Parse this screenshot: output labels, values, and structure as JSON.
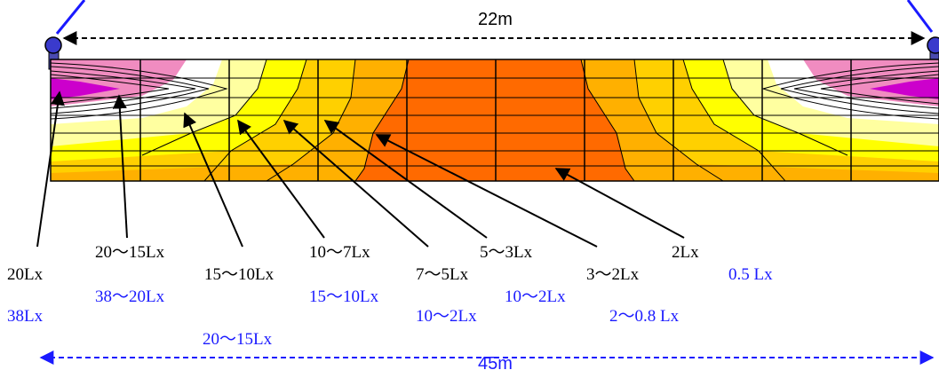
{
  "dimensions": {
    "top": "22m",
    "bottom": "45m"
  },
  "colors": {
    "zone_20": "#cc00cc",
    "zone_15": "#f08cc0",
    "zone_10": "#ffffff",
    "zone_7": "#ffffa0",
    "zone_5": "#ffff00",
    "zone_3": "#ffd000",
    "zone_2": "#ffb000",
    "zone_core": "#ff6a00",
    "blue": "#1a1aff"
  },
  "labels": {
    "black": [
      "20Lx",
      "20〜15Lx",
      "15〜10Lx",
      "10〜7Lx",
      "7〜5Lx",
      "5〜3Lx",
      "3〜2Lx",
      "2Lx"
    ],
    "blue": [
      "38Lx",
      "38〜20Lx",
      "20〜15Lx",
      "15〜10Lx",
      "10〜2Lx",
      "10〜2Lx",
      "2〜0.8 Lx",
      "0.5 Lx"
    ]
  }
}
